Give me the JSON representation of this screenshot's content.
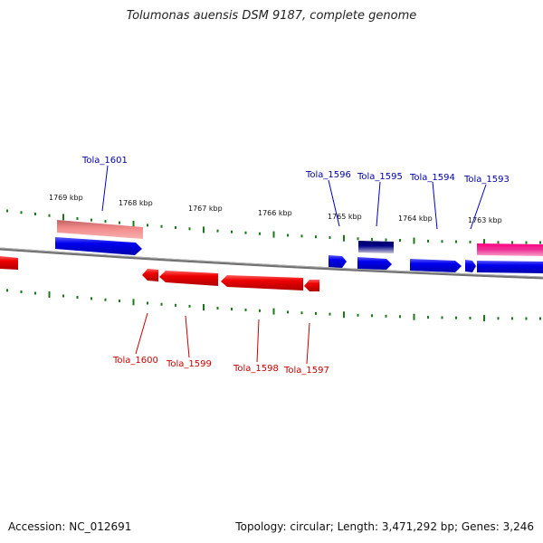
{
  "title": "Tolumonas auensis DSM 9187, complete genome",
  "footer": {
    "accession": "Accession: NC_012691",
    "summary": "Topology: circular; Length: 3,471,292 bp; Genes: 3,246"
  },
  "colors": {
    "forward_gene": "#0000ee",
    "reverse_gene": "#ee0000",
    "forward_label": "#0000aa",
    "reverse_label": "#cc0000",
    "tick": "#1a7a1a",
    "backbone": "#777777",
    "pink_feature": "#ee66aa",
    "salmon_feature": "#f09090",
    "navy_feature": "#000066"
  },
  "scale_labels": [
    "1769 kbp",
    "1768 kbp",
    "1767 kbp",
    "1766 kbp",
    "1765 kbp",
    "1764 kbp",
    "1763 kbp"
  ],
  "genes": {
    "forward": [
      "Tola_1601",
      "Tola_1596",
      "Tola_1595",
      "Tola_1594",
      "Tola_1593"
    ],
    "reverse": [
      "Tola_1600",
      "Tola_1599",
      "Tola_1598",
      "Tola_1597"
    ]
  }
}
